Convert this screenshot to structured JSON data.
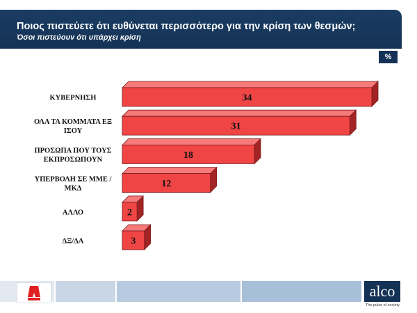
{
  "header": {
    "title": "Ποιος πιστεύετε ότι ευθύνεται περισσότερο για την κρίση των θεσμών;",
    "subtitle": "Όσοι πιστεύουν ότι υπάρχει κρίση"
  },
  "unit_label": "%",
  "footer": {
    "brand": "alco",
    "tagline": "The pulse of society",
    "left_logo": "Alpha TV logo",
    "left_logo_icon": "alpha-channel-logo-icon"
  },
  "colors": {
    "bar": "#f04545",
    "bar_side": "#a32424",
    "bar_top": "#f77a7a",
    "header": "#143255"
  },
  "chart_data": {
    "type": "bar",
    "orientation": "horizontal",
    "style": "3d",
    "categories": [
      [
        "ΚΥΒΕΡΝΗΣΗ"
      ],
      [
        "ΟΛΑ ΤΑ ΚΟΜΜΑΤΑ ΕΞ",
        "ΙΣΟΥ"
      ],
      [
        "ΠΡΟΣΩΠΑ ΠΟΥ ΤΟΥΣ",
        "ΕΚΠΡΟΣΩΠΟΥΝ"
      ],
      [
        "ΥΠΕΡΒΟΛΗ ΣΕ ΜΜΕ /",
        "ΜΚΔ"
      ],
      [
        "ΑΛΛΟ"
      ],
      [
        "ΔΞ/ΔΑ"
      ]
    ],
    "values": [
      34,
      31,
      18,
      12,
      2,
      3
    ],
    "data_labels": [
      "34",
      "31",
      "18",
      "12",
      "2",
      "3"
    ],
    "xlim": [
      0,
      34
    ],
    "grid": false,
    "legend": "none"
  }
}
